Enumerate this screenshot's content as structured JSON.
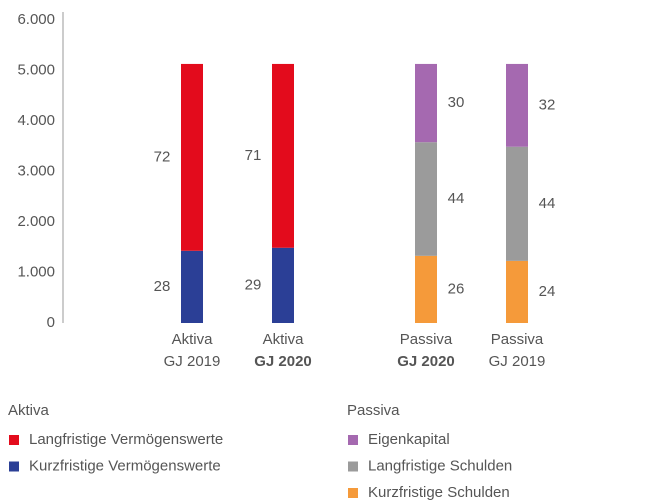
{
  "chart_data": {
    "type": "stacked_bar",
    "categories": [
      [
        "Aktiva",
        "GJ 2019"
      ],
      [
        "Aktiva",
        "GJ 2020"
      ],
      [
        "Passiva",
        "GJ 2020"
      ],
      [
        "Passiva",
        "GJ 2019"
      ]
    ],
    "category_bold_second_line": [
      false,
      true,
      true,
      false
    ],
    "label_side": [
      "left",
      "left",
      "right",
      "right"
    ],
    "legend_groups": [
      "Aktiva",
      "Passiva"
    ],
    "series": [
      {
        "name": "Langfristige Vermögenswerte",
        "color": "#e30b1c",
        "group": 0,
        "values": [
          3700,
          3640,
          null,
          null
        ],
        "shares": [
          72,
          71,
          null,
          null
        ]
      },
      {
        "name": "Kurzfristige Vermögenswerte",
        "color": "#2b3f96",
        "group": 0,
        "values": [
          1430,
          1490,
          null,
          null
        ],
        "shares": [
          28,
          29,
          null,
          null
        ]
      },
      {
        "name": "Eigenkapital",
        "color": "#a569b0",
        "group": 1,
        "values": [
          null,
          null,
          1550,
          1640
        ],
        "shares": [
          null,
          null,
          30,
          32
        ]
      },
      {
        "name": "Langfristige Schulden",
        "color": "#9b9b9b",
        "group": 1,
        "values": [
          null,
          null,
          2250,
          2260
        ],
        "shares": [
          null,
          null,
          44,
          44
        ]
      },
      {
        "name": "Kurzfristige Schulden",
        "color": "#f59a3a",
        "group": 1,
        "values": [
          null,
          null,
          1330,
          1230
        ],
        "shares": [
          null,
          null,
          26,
          24
        ]
      }
    ],
    "ylim": [
      0,
      6000
    ],
    "yticks": [
      0,
      {
        "value": 1000,
        "label": "1.000"
      },
      {
        "value": 2000,
        "label": "2.000"
      },
      {
        "value": 3000,
        "label": "3.000"
      },
      {
        "value": 4000,
        "label": "4.000"
      },
      {
        "value": 5000,
        "label": "5.000"
      },
      {
        "value": 6000,
        "label": "6.000"
      }
    ],
    "grid": false
  }
}
